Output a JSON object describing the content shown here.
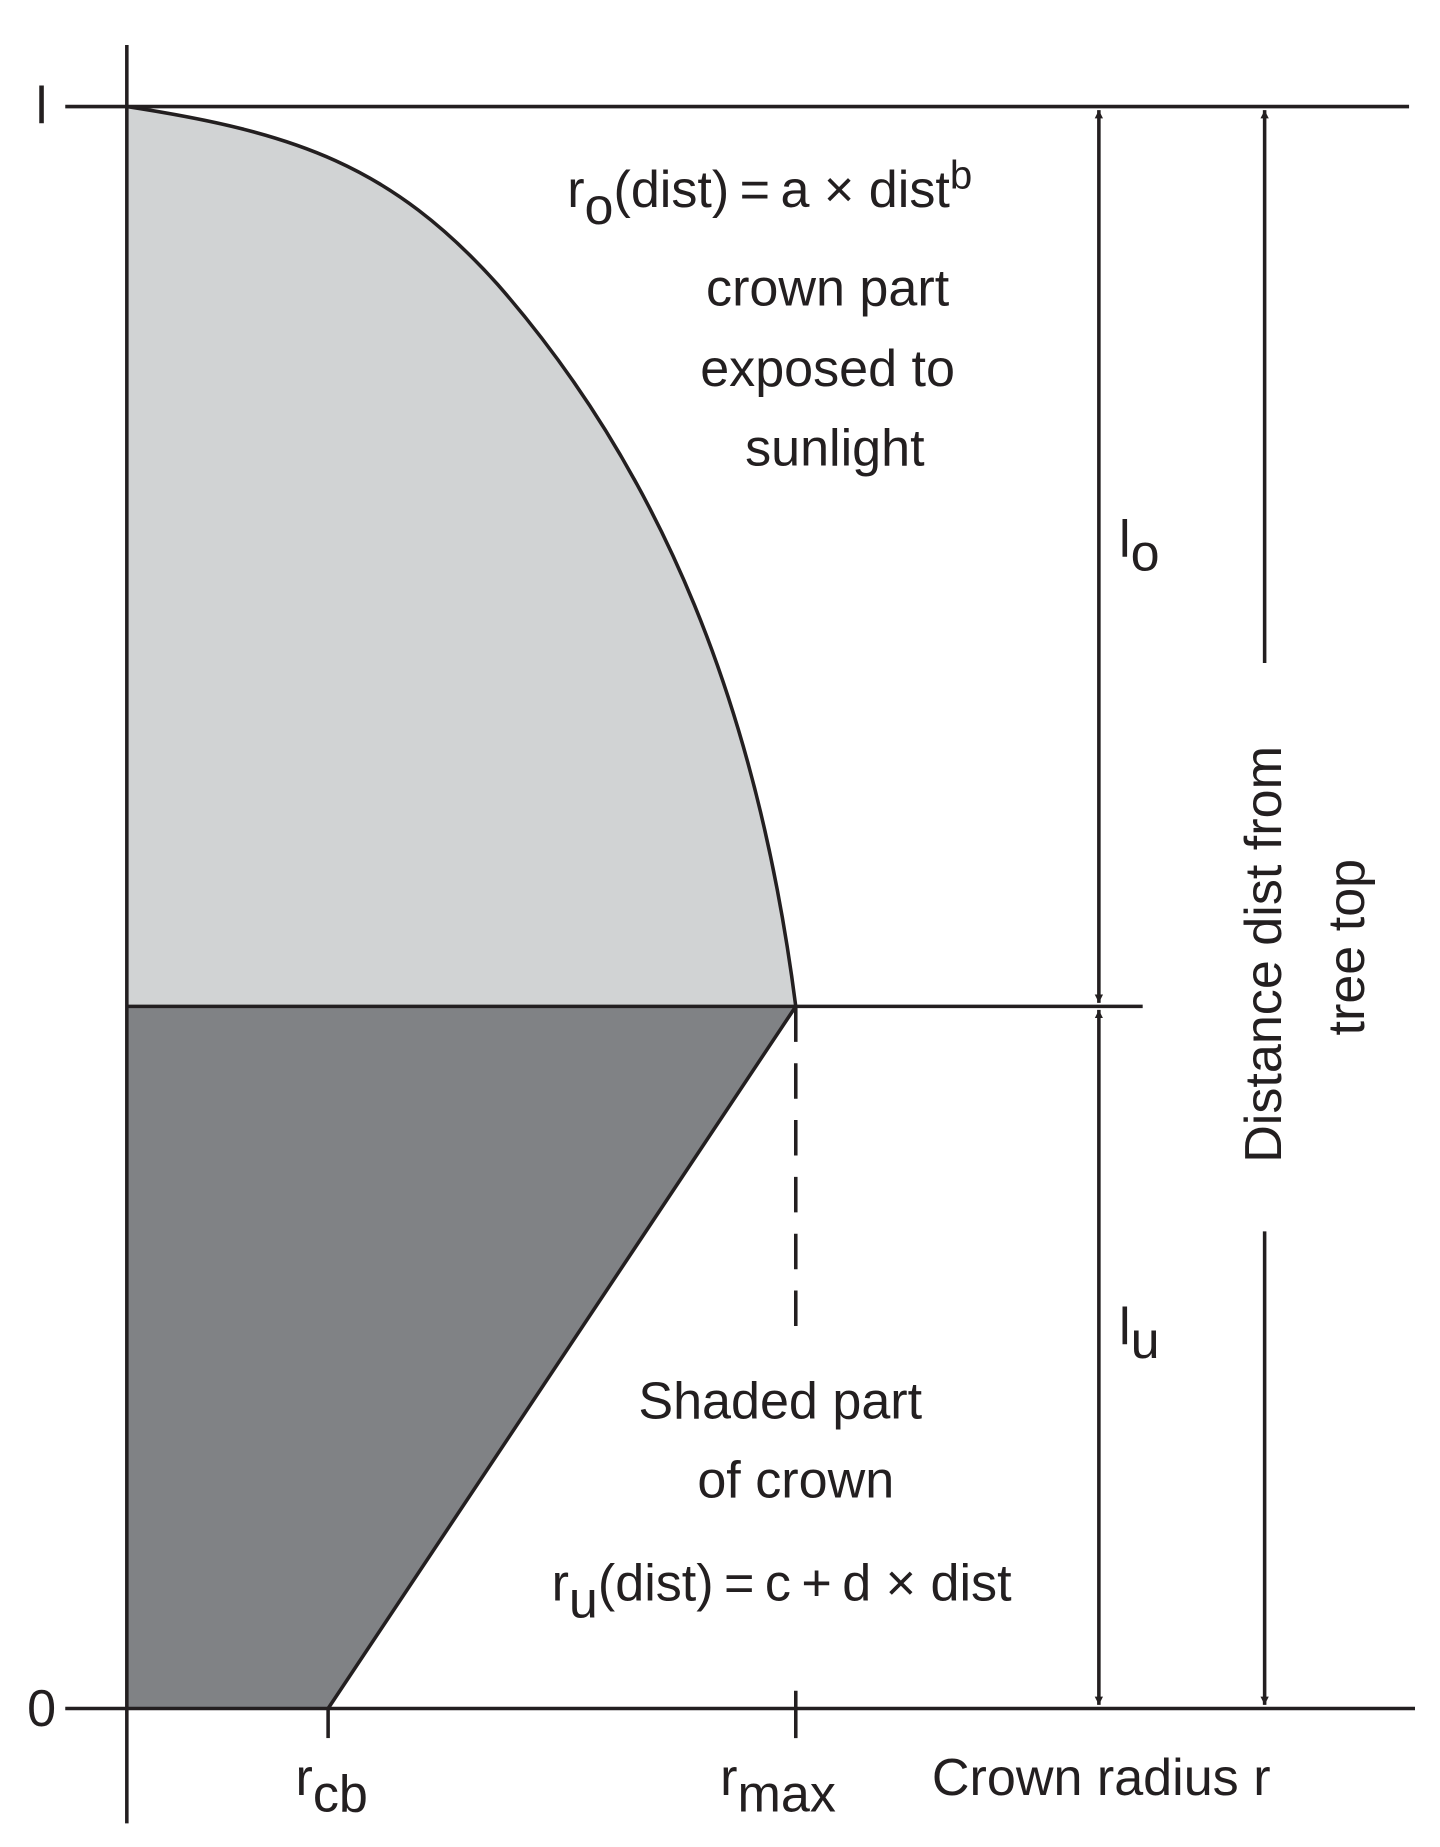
{
  "axes": {
    "top_label": "l",
    "bottom_label": "0",
    "x_title": "Crown radius r",
    "y_title": [
      "Distance dist from",
      "tree top"
    ]
  },
  "x_ticks": [
    {
      "main": "r",
      "sub": "cb"
    },
    {
      "main": "r",
      "sub": "max"
    }
  ],
  "upper_crown": {
    "formula": [
      "r",
      "o",
      "(dist) = a × dist",
      "b"
    ],
    "description": [
      "crown part",
      "exposed to",
      "sunlight"
    ],
    "length": {
      "main": "l",
      "sub": "o"
    }
  },
  "lower_crown": {
    "description": [
      "Shaded part",
      "of crown"
    ],
    "formula": [
      "r",
      "u",
      "(dist) = c + d × dist"
    ],
    "length": {
      "main": "l",
      "sub": "u"
    }
  }
}
